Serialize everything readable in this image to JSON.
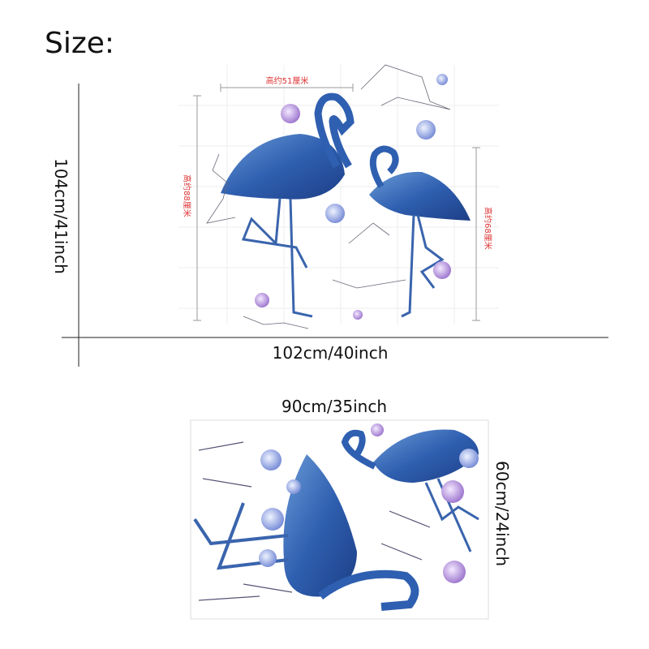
{
  "title": "Size:",
  "top": {
    "height_label": "104cm/41inch",
    "width_label": "102cm/40inch",
    "annotations": [
      "高约51厘米",
      "高约88厘米",
      "高约68厘米"
    ]
  },
  "bottom": {
    "width_label": "90cm/35inch",
    "height_label": "60cm/24inch"
  }
}
